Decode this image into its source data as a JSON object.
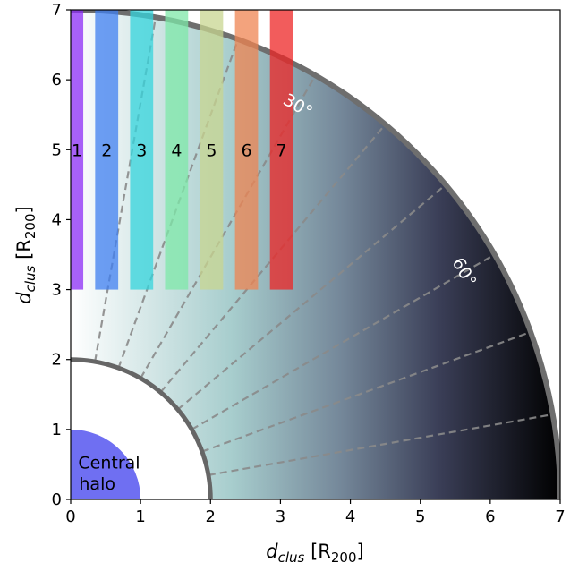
{
  "chart_data": {
    "type": "scatter",
    "title": "",
    "xlabel": {
      "main": "d",
      "sub": "clus",
      "unit_open": " [R",
      "unit_sub": "200",
      "unit_close": "]"
    },
    "ylabel": {
      "main": "d",
      "sub": "clus",
      "unit_open": " [R",
      "unit_sub": "200",
      "unit_close": "]"
    },
    "xlim": [
      0,
      7
    ],
    "ylim": [
      0,
      7
    ],
    "xticks": [
      "0",
      "1",
      "2",
      "3",
      "4",
      "5",
      "6",
      "7"
    ],
    "yticks": [
      "0",
      "1",
      "2",
      "3",
      "4",
      "5",
      "6",
      "7"
    ],
    "grid": false,
    "central_halo": {
      "label_line1": "Central",
      "label_line2": "halo",
      "radius": 1,
      "color": "#6f6ff2"
    },
    "inner_boundary_radius": 2,
    "outer_boundary_radius": 7,
    "radial_lines_angles_deg": [
      10,
      20,
      30,
      40,
      50,
      60,
      70,
      80
    ],
    "angle_labels": [
      {
        "text": "30°",
        "angle_deg": 30
      },
      {
        "text": "60°",
        "angle_deg": 60
      }
    ],
    "strips": [
      {
        "label": "1",
        "x_from": 0.0,
        "x_to": 0.18,
        "y_from": 3,
        "y_to": 7,
        "color": "#8b2cf5"
      },
      {
        "label": "2",
        "x_from": 0.35,
        "x_to": 0.68,
        "y_from": 3,
        "y_to": 7,
        "color": "#3f7ff0"
      },
      {
        "label": "3",
        "x_from": 0.85,
        "x_to": 1.18,
        "y_from": 3,
        "y_to": 7,
        "color": "#34d4dc"
      },
      {
        "label": "4",
        "x_from": 1.35,
        "x_to": 1.68,
        "y_from": 3,
        "y_to": 7,
        "color": "#7ee8a8"
      },
      {
        "label": "5",
        "x_from": 1.85,
        "x_to": 2.18,
        "y_from": 3,
        "y_to": 7,
        "color": "#c8d690"
      },
      {
        "label": "6",
        "x_from": 2.35,
        "x_to": 2.68,
        "y_from": 3,
        "y_to": 7,
        "color": "#ef8451"
      },
      {
        "label": "7",
        "x_from": 2.85,
        "x_to": 3.18,
        "y_from": 3,
        "y_to": 7,
        "color": "#ee2626"
      }
    ],
    "strip_label_y": 5
  }
}
